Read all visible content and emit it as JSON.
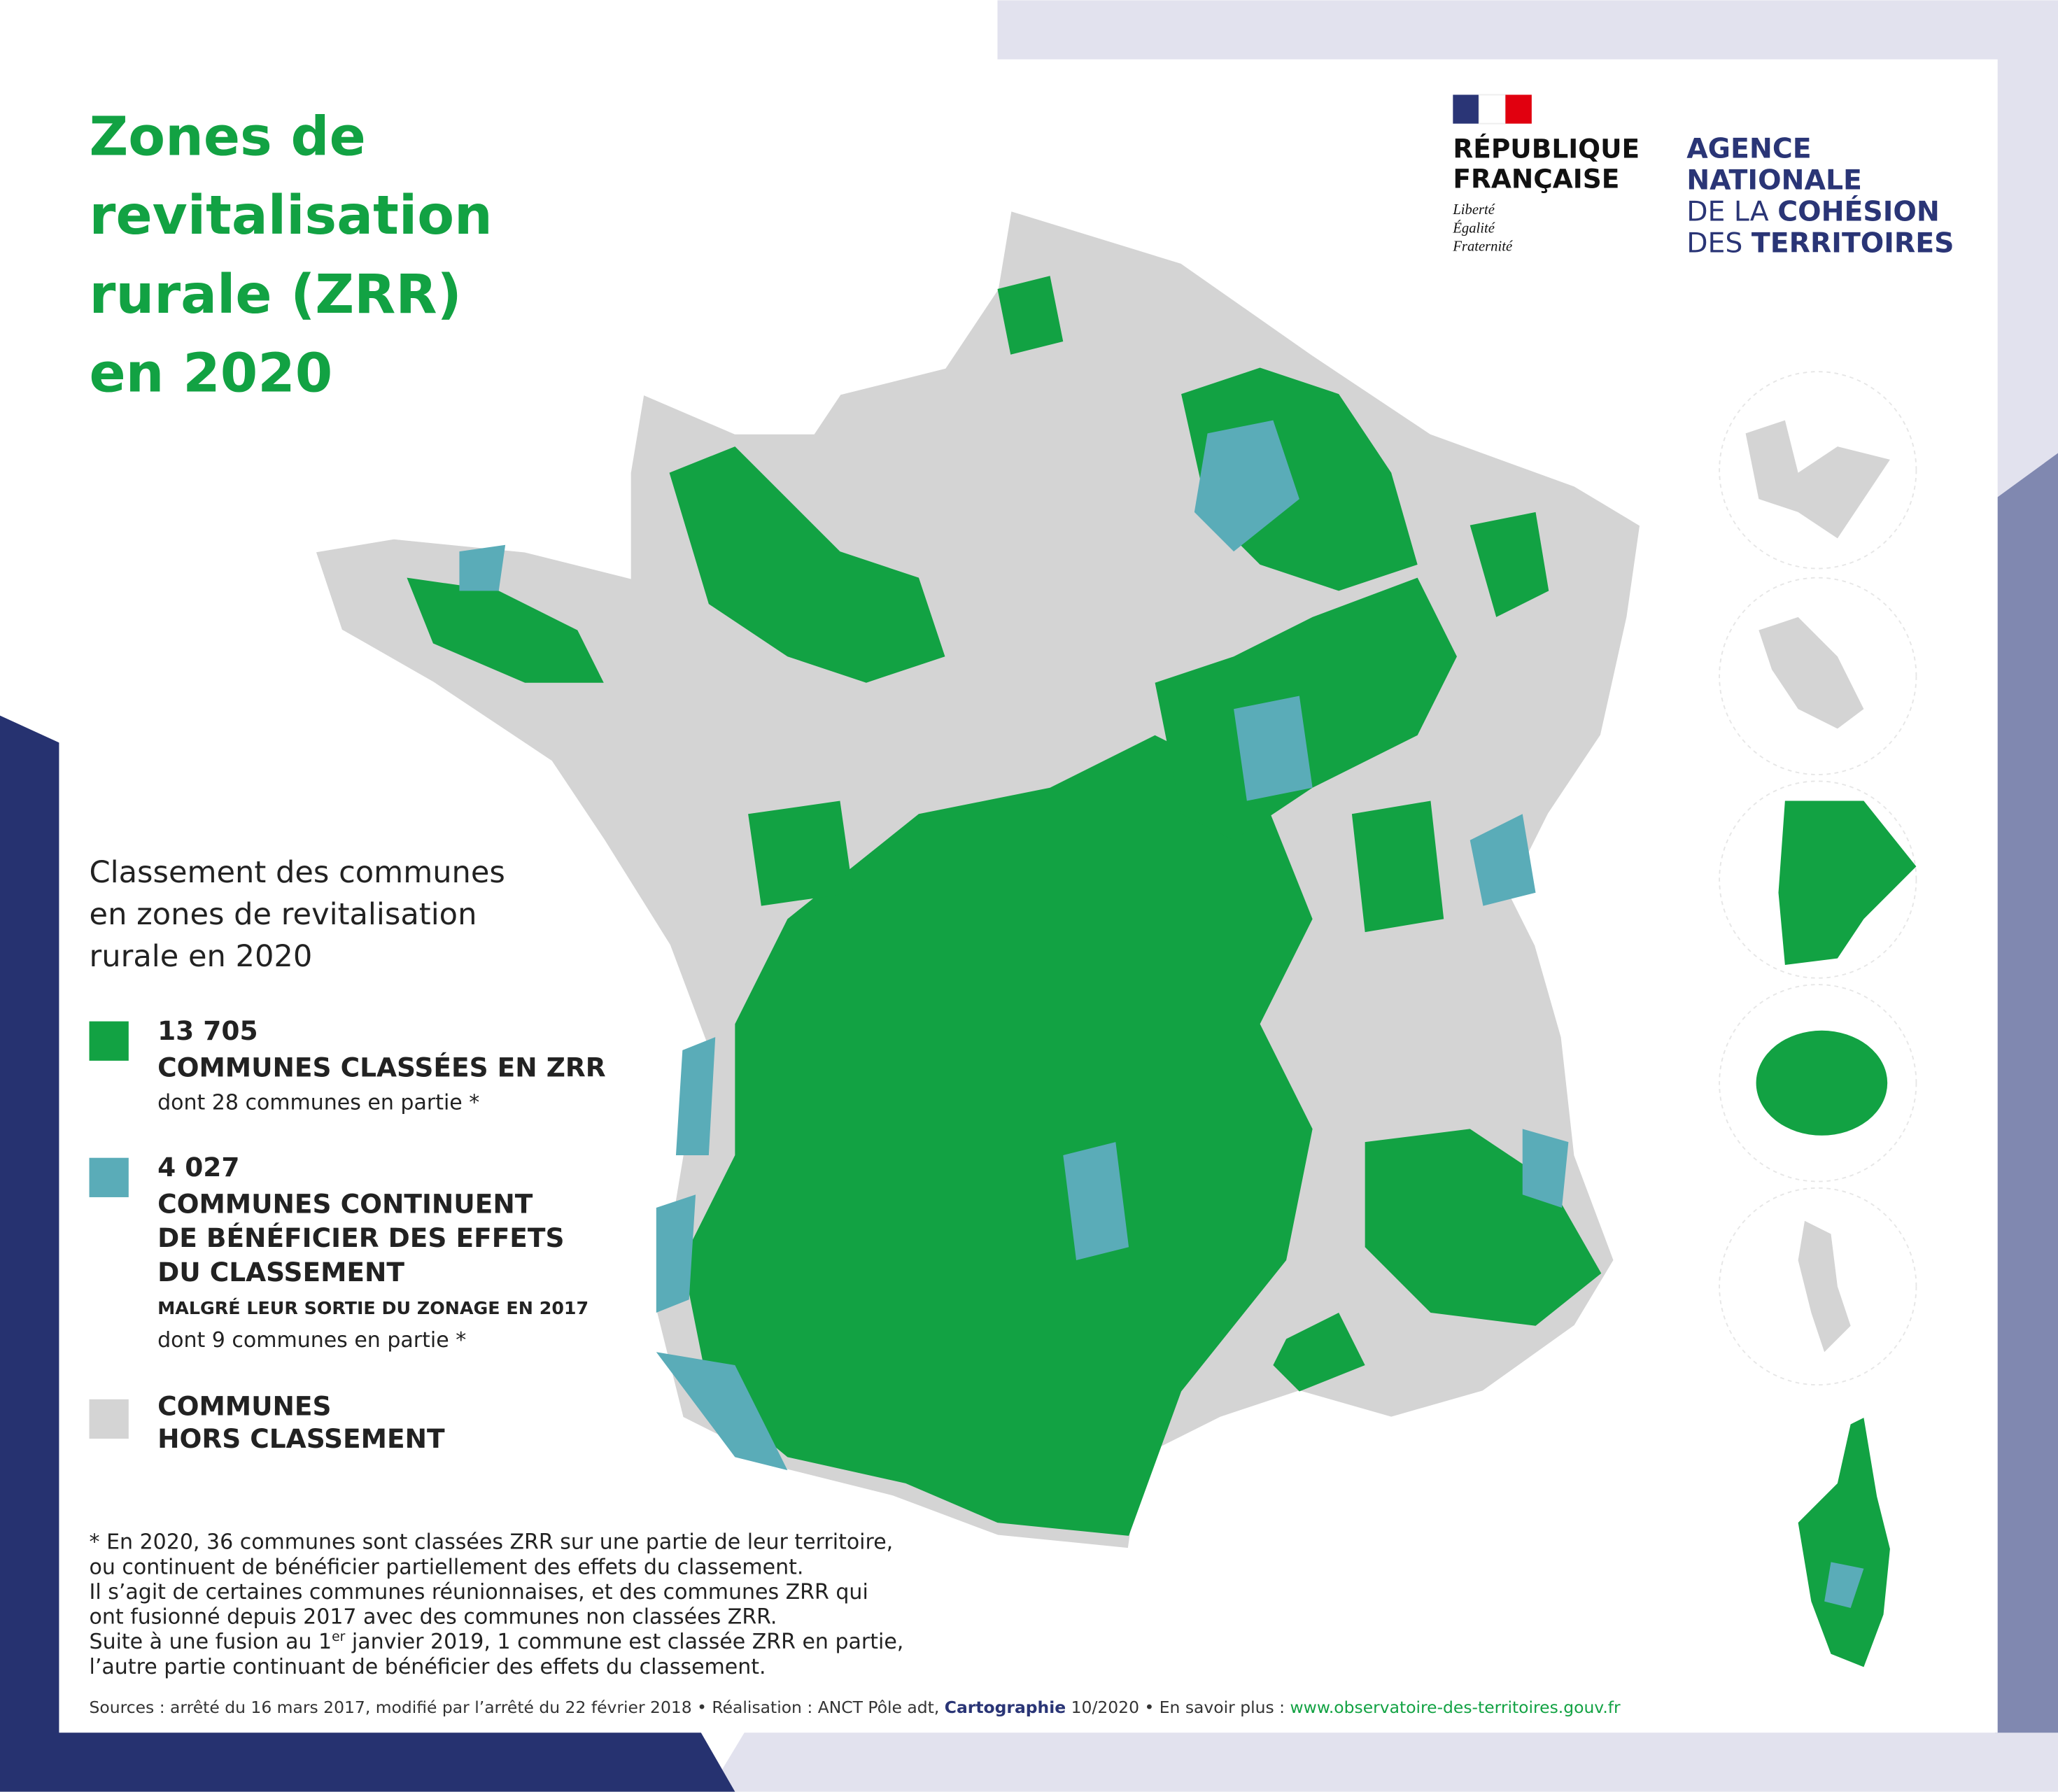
{
  "title": {
    "lines": [
      "Zones de",
      "revitalisation",
      "rurale (ZRR)",
      "en 2020"
    ]
  },
  "republique": {
    "lines": [
      "RÉPUBLIQUE",
      "FRANÇAISE"
    ],
    "motto": [
      "Liberté",
      "Égalité",
      "Fraternité"
    ]
  },
  "agency": {
    "lines": [
      "AGENCE",
      "NATIONALE",
      "DE LA ",
      "COHÉSION",
      "DES ",
      "TERRITOIRES"
    ]
  },
  "legend": {
    "title": [
      "Classement des communes",
      "en zones de revitalisation",
      "rurale en 2020"
    ],
    "items": [
      {
        "count": "13 705",
        "label": [
          "COMMUNES CLASSÉES EN ZRR"
        ],
        "note": "dont 28 communes en partie *"
      },
      {
        "count": "4 027",
        "label": [
          "COMMUNES CONTINUENT",
          "DE BÉNÉFICIER DES EFFETS",
          "DU CLASSEMENT"
        ],
        "sublabel": "MALGRÉ LEUR SORTIE DU ZONAGE EN 2017",
        "note": "dont 9 communes en partie *"
      },
      {
        "label": [
          "COMMUNES",
          "HORS CLASSEMENT"
        ]
      }
    ]
  },
  "footnote": {
    "lines": [
      "* En 2020, 36 communes sont classées ZRR sur une partie de leur territoire,",
      "ou continuent de bénéficier partiellement des effets du classement.",
      "Il s’agit de certaines communes réunionnaises, et des communes ZRR qui",
      "ont fusionné depuis 2017 avec des communes non classées ZRR."
    ],
    "fusion": [
      "Suite à une fusion au 1",
      "er",
      " janvier 2019, 1 commune est classée ZRR en partie,"
    ],
    "last": "l’autre partie continuant de bénéficier des effets du classement."
  },
  "sources": [
    "Sources : arrêté du 16 mars 2017, modifié par l’arrêté du 22 février 2018 • Réalisation : ANCT Pôle adt, ",
    "Cartographie",
    " 10/2020 • En savoir plus : ",
    "www.observatoire-des-territoires.gouv.fr"
  ]
}
